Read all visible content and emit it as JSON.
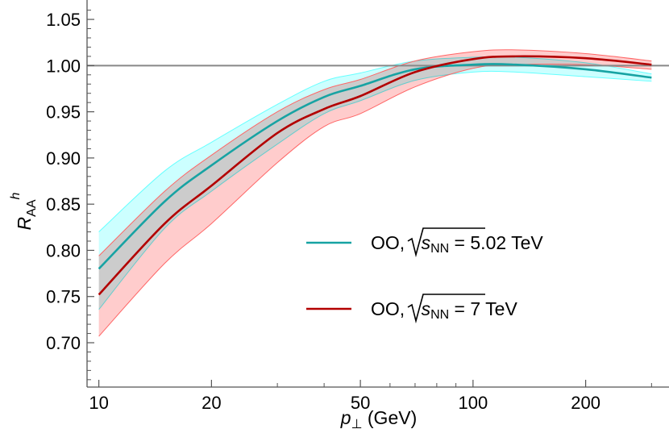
{
  "chart_data": {
    "type": "line",
    "xlabel": {
      "main": "p",
      "sub": "⊥",
      "unit": " (GeV)"
    },
    "ylabel": {
      "main": "R",
      "sub": "AA",
      "sup": "h"
    },
    "x_scale": "log",
    "xlim": [
      9.3,
      334
    ],
    "ylim": [
      0.652,
      1.071
    ],
    "x_ticks": [
      10,
      20,
      50,
      100,
      200
    ],
    "x_tick_labels": [
      "10",
      "20",
      "50",
      "100",
      "200"
    ],
    "y_ticks": [
      0.7,
      0.75,
      0.8,
      0.85,
      0.9,
      0.95,
      1.0,
      1.05
    ],
    "y_tick_labels": [
      "0.70",
      "0.75",
      "0.80",
      "0.85",
      "0.90",
      "0.95",
      "1.00",
      "1.05"
    ],
    "grid": false,
    "reference_line": 1.0,
    "legend_placement": "center-right",
    "x": [
      10,
      15,
      20,
      30,
      40,
      50,
      70,
      100,
      130,
      200,
      300
    ],
    "series": [
      {
        "name": "OO, √s_NN = 5.02 TeV",
        "legend": {
          "prefix": "OO, ",
          "s": "s",
          "sub": "NN",
          "suffix": " = 5.02 TeV"
        },
        "color": "#17a3a3",
        "band_fill": "#ccffff",
        "band_edge": "#66ffff",
        "values": [
          0.78,
          0.853,
          0.892,
          0.94,
          0.966,
          0.978,
          0.996,
          1.001,
          1.001,
          0.996,
          0.987
        ],
        "upper": [
          0.82,
          0.886,
          0.917,
          0.958,
          0.983,
          0.992,
          1.005,
          1.009,
          1.009,
          1.003,
          0.991
        ],
        "lower": [
          0.736,
          0.824,
          0.864,
          0.915,
          0.948,
          0.962,
          0.984,
          0.993,
          0.993,
          0.988,
          0.983
        ]
      },
      {
        "name": "OO, √s_NN = 7 TeV",
        "legend": {
          "prefix": "OO, ",
          "s": "s",
          "sub": "NN",
          "suffix": " = 7 TeV"
        },
        "color": "#b30000",
        "band_fill": "#ffcccc",
        "band_edge": "#ff6666",
        "values": [
          0.752,
          0.829,
          0.87,
          0.927,
          0.953,
          0.967,
          0.993,
          1.007,
          1.01,
          1.008,
          1.001
        ],
        "upper": [
          0.794,
          0.864,
          0.903,
          0.95,
          0.974,
          0.985,
          1.005,
          1.015,
          1.017,
          1.013,
          1.005
        ],
        "lower": [
          0.707,
          0.786,
          0.829,
          0.895,
          0.934,
          0.948,
          0.977,
          0.997,
          1.001,
          1.001,
          0.996
        ]
      }
    ]
  }
}
